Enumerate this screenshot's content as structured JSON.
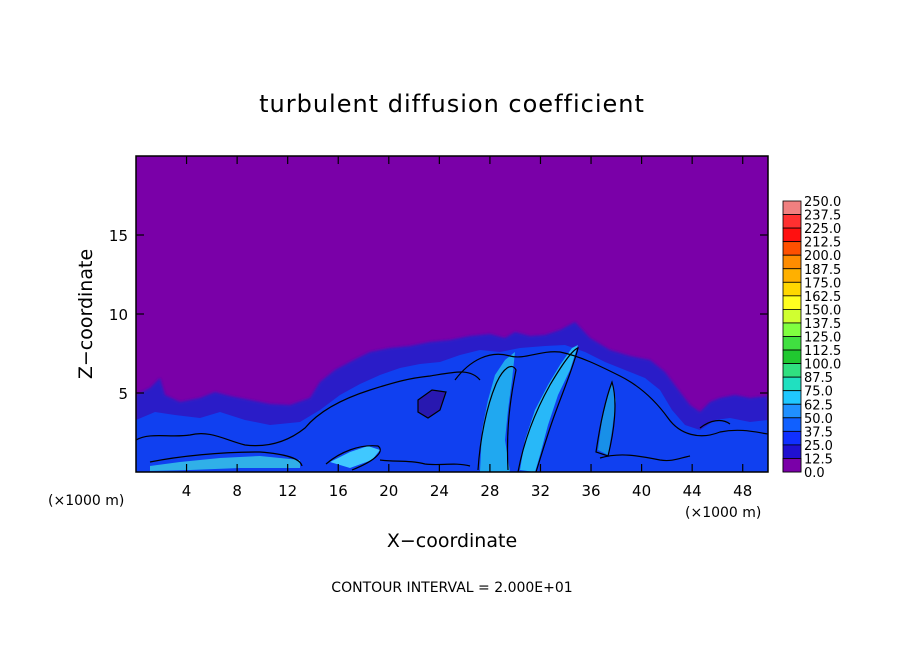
{
  "chart_data": {
    "type": "heatmap",
    "title": "turbulent diffusion coefficient",
    "xlabel": "X−coordinate",
    "ylabel": "Z−coordinate",
    "x_unit_left": "(×1000 m)",
    "x_unit_right": "(×1000 m)",
    "footer": "CONTOUR INTERVAL = 2.000E+01",
    "xlim": [
      0,
      50
    ],
    "ylim": [
      0,
      20
    ],
    "x_ticks": [
      4,
      8,
      12,
      16,
      20,
      24,
      28,
      32,
      36,
      40,
      44,
      48
    ],
    "y_ticks": [
      5,
      10,
      15
    ],
    "colorbar": {
      "levels": [
        "250.0",
        "237.5",
        "225.0",
        "212.5",
        "200.0",
        "187.5",
        "175.0",
        "162.5",
        "150.0",
        "137.5",
        "125.0",
        "112.5",
        "100.0",
        "87.5",
        "75.0",
        "62.5",
        "50.0",
        "37.5",
        "25.0",
        "12.5",
        "0.0"
      ],
      "colors": [
        "#f08080",
        "#ff3030",
        "#ff1010",
        "#ff5000",
        "#ff8c00",
        "#ffb000",
        "#ffd700",
        "#ffff20",
        "#d0ff30",
        "#80ff40",
        "#40e040",
        "#20c830",
        "#30e080",
        "#20e0c0",
        "#20c8ff",
        "#2090ff",
        "#1060ff",
        "#1030ff",
        "#2010d0",
        "#3020a0",
        "#7a00a8"
      ]
    },
    "background_color": "#7a00a8"
  }
}
